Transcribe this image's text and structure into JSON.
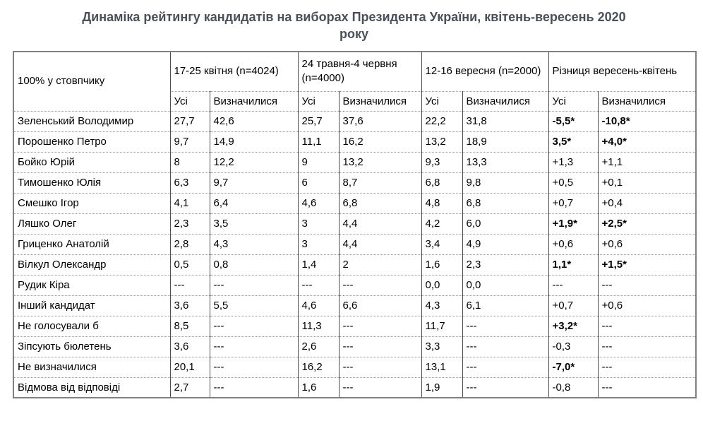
{
  "title": {
    "line1": "Динаміка рейтингу кандидатів на виборах Президента України, квітень-вересень 2020",
    "line2": "року"
  },
  "chart_data": {
    "type": "table",
    "title": "Динаміка рейтингу кандидатів на виборах Президента України, квітень-вересень 2020 року",
    "corner_label": "100% у стовпчику",
    "groups": [
      "17-25 квітня (n=4024)",
      "24 травня-4 червня (n=4000)",
      "12-16 вересня (n=2000)",
      "Різниця вересень-квітень"
    ],
    "subheaders": [
      "Усі",
      "Визначилися"
    ],
    "rows": [
      {
        "label": "Зеленський Володимир",
        "cells": [
          "27,7",
          "42,6",
          "25,7",
          "37,6",
          "22,2",
          "31,8",
          "-5,5*",
          "-10,8*"
        ],
        "bold": [
          6,
          7
        ]
      },
      {
        "label": "Порошенко Петро",
        "cells": [
          "9,7",
          "14,9",
          "11,1",
          "16,2",
          "13,2",
          "18,9",
          "3,5*",
          "+4,0*"
        ],
        "bold": [
          6,
          7
        ]
      },
      {
        "label": "Бойко Юрій",
        "cells": [
          "8",
          "12,2",
          "9",
          "13,2",
          "9,3",
          "13,3",
          "+1,3",
          "+1,1"
        ],
        "bold": []
      },
      {
        "label": "Тимошенко Юлія",
        "cells": [
          "6,3",
          "9,7",
          "6",
          "8,7",
          "6,8",
          "9,8",
          "+0,5",
          "+0,1"
        ],
        "bold": []
      },
      {
        "label": "Смешко Ігор",
        "cells": [
          "4,1",
          "6,4",
          "4,6",
          "6,8",
          "4,8",
          "6,8",
          "+0,7",
          "+0,4"
        ],
        "bold": []
      },
      {
        "label": "Ляшко Олег",
        "cells": [
          "2,3",
          "3,5",
          "3",
          "4,4",
          "4,2",
          "6,0",
          "+1,9*",
          "+2,5*"
        ],
        "bold": [
          6,
          7
        ]
      },
      {
        "label": "Гриценко Анатолій",
        "cells": [
          "2,8",
          "4,3",
          "3",
          "4,4",
          "3,4",
          "4,9",
          "+0,6",
          "+0,6"
        ],
        "bold": []
      },
      {
        "label": "Вілкул Олександр",
        "cells": [
          "0,5",
          "0,8",
          "1,4",
          "2",
          "1,6",
          "2,3",
          "1,1*",
          "+1,5*"
        ],
        "bold": [
          6,
          7
        ]
      },
      {
        "label": "Рудик Кіра",
        "cells": [
          "---",
          "---",
          "---",
          "---",
          "0,0",
          "0,0",
          "---",
          "---"
        ],
        "bold": []
      },
      {
        "label": "Інший кандидат",
        "cells": [
          "3,6",
          "5,5",
          "4,6",
          "6,6",
          "4,3",
          "6,1",
          "+0,7",
          "+0,6"
        ],
        "bold": []
      },
      {
        "label": "Не голосували б",
        "cells": [
          "8,5",
          "---",
          "11,3",
          "---",
          "11,7",
          "---",
          "+3,2*",
          "---"
        ],
        "bold": [
          6
        ]
      },
      {
        "label": "Зіпсують бюлетень",
        "cells": [
          "3,6",
          "---",
          "2,6",
          "---",
          "3,3",
          "---",
          "-0,3",
          "---"
        ],
        "bold": []
      },
      {
        "label": "Не визначилися",
        "cells": [
          "20,1",
          "---",
          "16,2",
          "---",
          "13,1",
          "---",
          "-7,0*",
          "---"
        ],
        "bold": [
          6
        ]
      },
      {
        "label": "Відмова від відповіді",
        "cells": [
          "2,7",
          "---",
          "1,6",
          "---",
          "1,9",
          "---",
          "-0,8",
          "---"
        ],
        "bold": []
      }
    ]
  }
}
